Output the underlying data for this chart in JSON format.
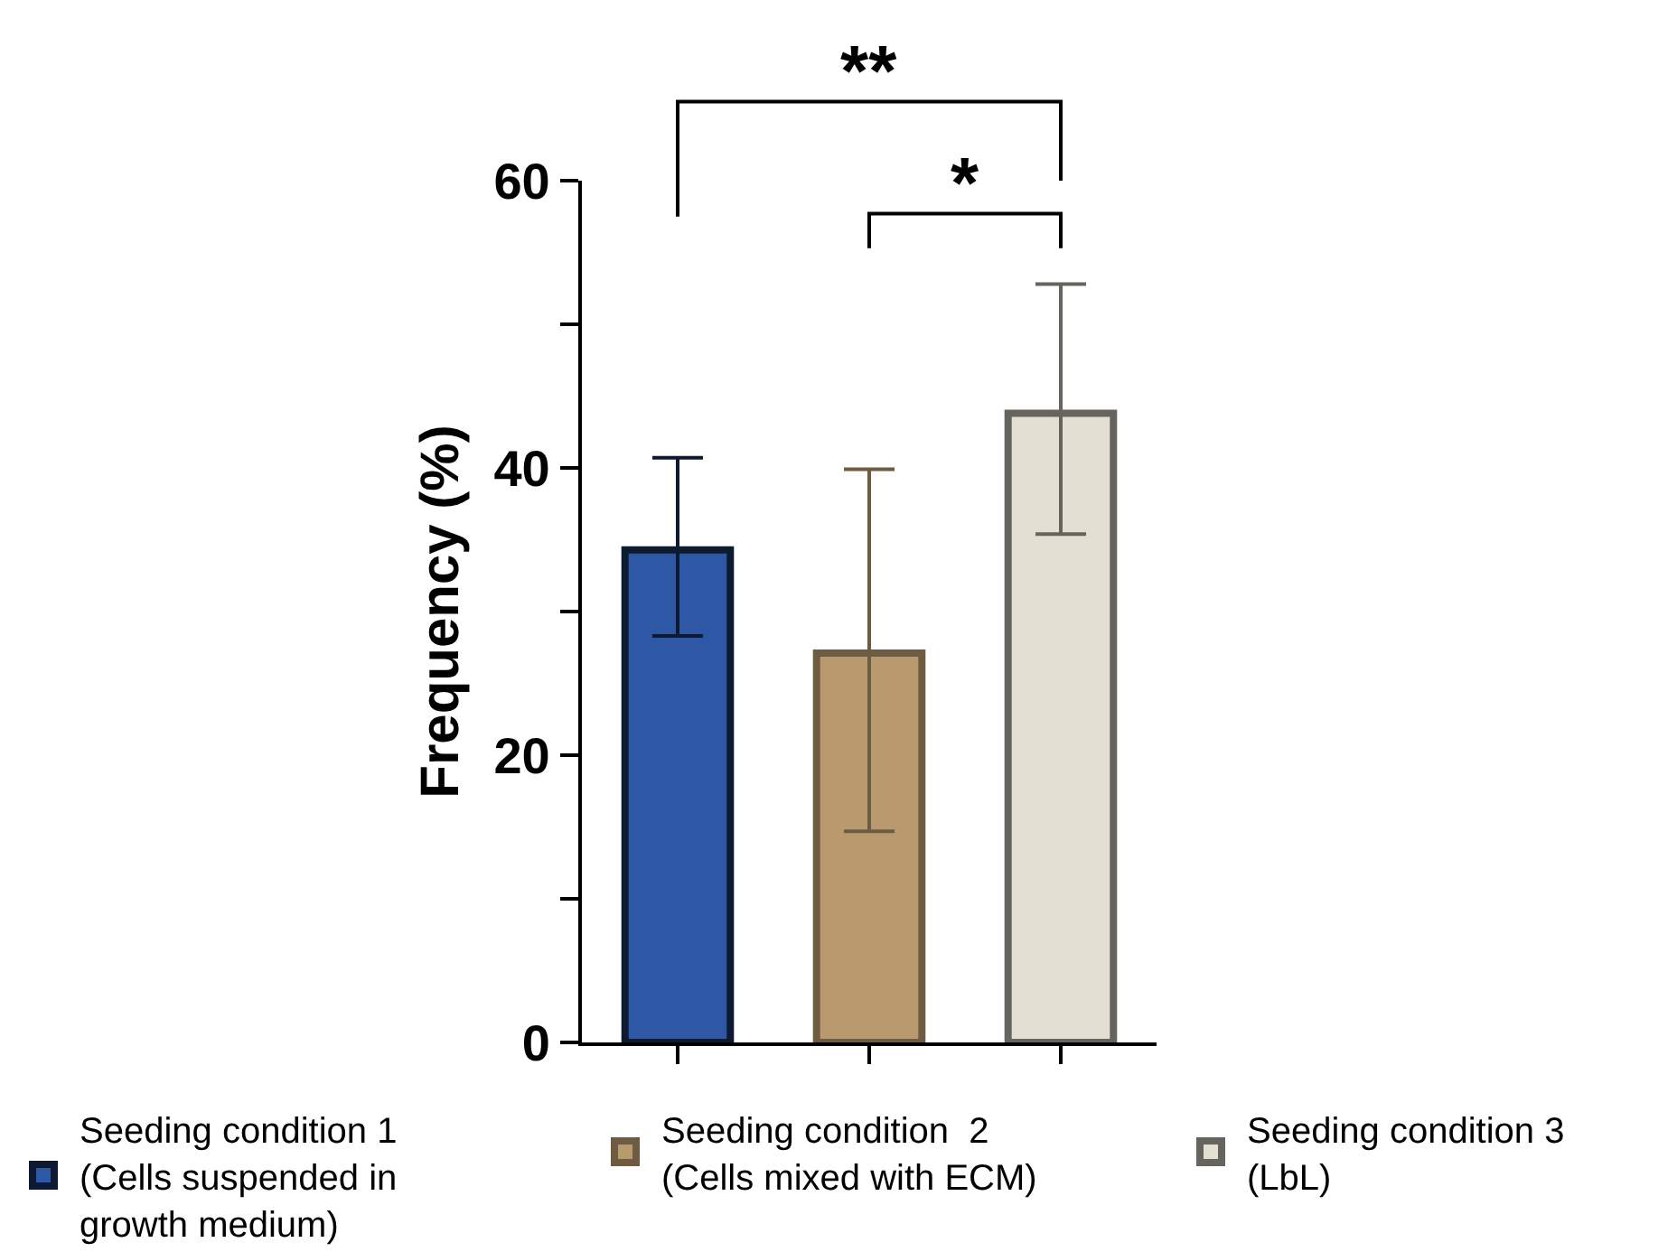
{
  "chart_data": {
    "type": "bar",
    "categories": [
      null,
      null,
      null
    ],
    "ylabel": "Frequency (%)",
    "ylim": [
      0,
      60
    ],
    "yticks": [
      0,
      {
        "value": 10,
        "label": null
      },
      20,
      {
        "value": 30,
        "label": null
      },
      40,
      {
        "value": 50,
        "label": null
      },
      60
    ],
    "tick_labels": "y",
    "legend": "bottom",
    "series": [
      {
        "name": "Seeding condition 1 (Cells suspended in growth medium)",
        "color": "#2e58a6",
        "values": [
          34.3,
          null,
          null
        ],
        "errors": [
          [
            28.3,
            40.7
          ],
          null,
          null
        ]
      },
      {
        "name": "Seeding condition  2 (Cells mixed with ECM)",
        "color": "#b89a6e",
        "values": [
          null,
          27.1,
          null
        ],
        "errors": [
          null,
          [
            14.7,
            39.9
          ],
          null
        ]
      },
      {
        "name": "Seeding condition 3 (LbL)",
        "color": "#e3dfd3",
        "values": [
          null,
          null,
          43.8
        ],
        "errors": [
          null,
          null,
          [
            35.4,
            52.8
          ]
        ]
      }
    ],
    "annotations": [
      "**",
      "*"
    ]
  }
}
